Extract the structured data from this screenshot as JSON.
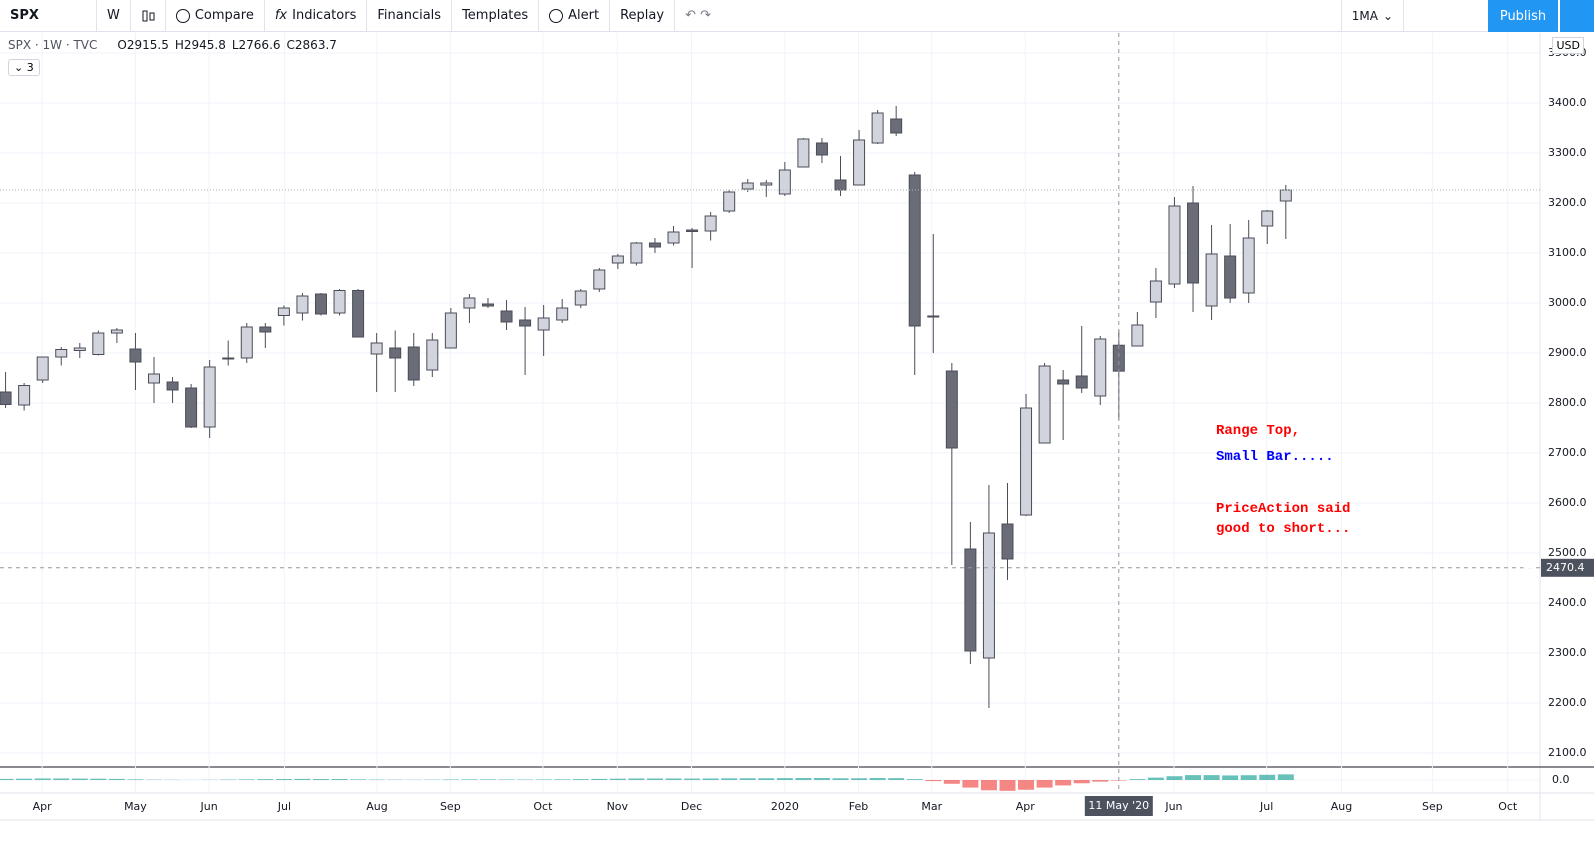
{
  "toolbar": {
    "symbol": "SPX",
    "interval": "W",
    "items": [
      "Compare",
      "Indicators",
      "Financials",
      "Templates",
      "Alert",
      "Replay"
    ],
    "layout": "1MA",
    "publish": "Publish"
  },
  "legend": {
    "symbol_label": "SPX · 1W · TVC",
    "ohlc": [
      "O2915.5",
      "H2945.8",
      "L2766.6",
      "C2863.7"
    ],
    "collapsed_count": "3"
  },
  "currency": "USD",
  "chart_data": {
    "type": "candlestick",
    "categories": [
      null,
      null,
      null,
      null,
      null,
      null,
      null,
      null,
      null,
      null,
      null,
      null,
      null,
      null,
      null,
      null,
      null,
      null,
      null,
      null,
      null,
      null,
      null,
      null,
      null,
      null,
      null,
      null,
      null,
      null,
      null,
      null,
      null,
      null,
      null,
      null,
      null,
      null,
      null,
      null,
      null,
      null,
      null,
      null,
      null,
      null,
      null,
      null,
      null,
      null,
      null,
      null,
      null,
      null,
      null,
      null,
      null,
      null,
      null,
      null,
      "11 May '20",
      null,
      null,
      null,
      null,
      null,
      null,
      null,
      null,
      null
    ],
    "open": [
      2822,
      2796,
      2846,
      2892,
      2905,
      2897,
      2940,
      2908,
      2840,
      2842,
      2830,
      2752,
      2888,
      2890,
      2952,
      2975,
      2980,
      3018,
      2980,
      3025,
      2898,
      2910,
      2912,
      2866,
      2910,
      2990,
      2998,
      2984,
      2966,
      2946,
      2966,
      2996,
      3028,
      3080,
      3080,
      3120,
      3120,
      3146,
      3144,
      3184,
      3228,
      3236,
      3218,
      3272,
      3320,
      3246,
      3236,
      3320,
      3368,
      3256,
      2974,
      2864,
      2508,
      2290,
      2558,
      2576,
      2720,
      2846,
      2854,
      2814,
      2915.5,
      2914,
      3002,
      3038,
      3200,
      2994,
      3094,
      3020,
      3154,
      3204
    ],
    "high": [
      2862,
      2840,
      2893,
      2912,
      2920,
      2945,
      2950,
      2940,
      2892,
      2852,
      2838,
      2886,
      2925,
      2960,
      2960,
      2995,
      3020,
      3020,
      3028,
      3028,
      2940,
      2945,
      2940,
      2940,
      2990,
      3018,
      3010,
      3006,
      2992,
      2996,
      3008,
      3028,
      3070,
      3098,
      3122,
      3130,
      3154,
      3150,
      3182,
      3226,
      3248,
      3246,
      3282,
      3330,
      3330,
      3294,
      3346,
      3386,
      3394,
      3262,
      3138,
      2880,
      2562,
      2636,
      2640,
      2818,
      2880,
      2866,
      2954,
      2934,
      2945.8,
      2982,
      3070,
      3212,
      3234,
      3156,
      3158,
      3166,
      3186,
      3236
    ],
    "low": [
      2790,
      2785,
      2840,
      2875,
      2890,
      2895,
      2920,
      2826,
      2800,
      2800,
      2750,
      2730,
      2875,
      2880,
      2910,
      2955,
      2965,
      2975,
      2975,
      2932,
      2822,
      2822,
      2834,
      2852,
      2910,
      2960,
      2990,
      2946,
      2856,
      2894,
      2960,
      2990,
      3022,
      3068,
      3075,
      3100,
      3115,
      3070,
      3125,
      3180,
      3222,
      3212,
      3214,
      3272,
      3280,
      3214,
      3236,
      3318,
      3334,
      2856,
      2900,
      2476,
      2278,
      2190,
      2446,
      2574,
      2720,
      2726,
      2820,
      2796,
      2766.6,
      2914,
      2970,
      3030,
      2982,
      2966,
      3000,
      3000,
      3118,
      3128
    ],
    "close": [
      2797,
      2835,
      2892,
      2907,
      2910,
      2940,
      2946,
      2882,
      2858,
      2826,
      2752,
      2872,
      2890,
      2952,
      2942,
      2990,
      3014,
      2978,
      3025,
      2932,
      2920,
      2890,
      2846,
      2926,
      2980,
      3010,
      2994,
      2962,
      2954,
      2970,
      2990,
      3024,
      3066,
      3094,
      3120,
      3112,
      3142,
      3143,
      3174,
      3222,
      3240,
      3240,
      3266,
      3328,
      3296,
      3226,
      3326,
      3380,
      3340,
      2954,
      2972,
      2710,
      2304,
      2540,
      2488,
      2790,
      2874,
      2838,
      2830,
      2928,
      2863.7,
      2956,
      3044,
      3194,
      3040,
      3098,
      3010,
      3130,
      3184,
      3226
    ],
    "up_color": "#d1d4dc",
    "down_color": "#6a6d78",
    "border_color": "#4a4d57",
    "xlim": [
      -0.3,
      82.7
    ],
    "xticks": [
      {
        "value": 1.97,
        "label": "Apr"
      },
      {
        "value": 7.0,
        "label": "May"
      },
      {
        "value": 10.97,
        "label": "Jun"
      },
      {
        "value": 15.03,
        "label": "Jul"
      },
      {
        "value": 20.02,
        "label": "Aug"
      },
      {
        "value": 23.97,
        "label": "Sep"
      },
      {
        "value": 28.96,
        "label": "Oct"
      },
      {
        "value": 32.97,
        "label": "Nov"
      },
      {
        "value": 36.97,
        "label": "Dec"
      },
      {
        "value": 42.0,
        "label": "2020"
      },
      {
        "value": 45.97,
        "label": "Feb"
      },
      {
        "value": 49.92,
        "label": "Mar"
      },
      {
        "value": 54.96,
        "label": "Apr"
      },
      {
        "value": 62.97,
        "label": "Jun"
      },
      {
        "value": 67.97,
        "label": "Jul"
      },
      {
        "value": 72.0,
        "label": "Aug"
      },
      {
        "value": 76.9,
        "label": "Sep"
      },
      {
        "value": 80.96,
        "label": "Oct"
      }
    ],
    "ylim": [
      2072,
      3540
    ],
    "yticks": [
      {
        "value": 2100,
        "label": "2100.0"
      },
      {
        "value": 2200,
        "label": "2200.0"
      },
      {
        "value": 2300,
        "label": "2300.0"
      },
      {
        "value": 2400,
        "label": "2400.0"
      },
      {
        "value": 2500,
        "label": "2500.0"
      },
      {
        "value": 2600,
        "label": "2600.0"
      },
      {
        "value": 2700,
        "label": "2700.0"
      },
      {
        "value": 2800,
        "label": "2800.0"
      },
      {
        "value": 2900,
        "label": "2900.0"
      },
      {
        "value": 3000,
        "label": "3000.0"
      },
      {
        "value": 3100,
        "label": "3100.0"
      },
      {
        "value": 3200,
        "label": "3200.0"
      },
      {
        "value": 3300,
        "label": "3300.0"
      },
      {
        "value": 3400,
        "label": "3400.0"
      },
      {
        "value": 3500,
        "label": "3500.0"
      }
    ],
    "grid": true,
    "crosshair_price": 2470.4,
    "annotations": [
      {
        "text": "Range Top,",
        "color": "#ff0000"
      },
      {
        "text": "Small Bar.....",
        "color": "#0000ff"
      },
      {
        "text": "PriceAction said",
        "color": "#ff0000"
      },
      {
        "text": "good to short...",
        "color": "#ff0000"
      }
    ],
    "indicator": {
      "type": "bar",
      "values": [
        10,
        12,
        14,
        14,
        13,
        12,
        10,
        6,
        3,
        2,
        1,
        2,
        4,
        6,
        8,
        9,
        10,
        9,
        9,
        6,
        4,
        3,
        2,
        3,
        5,
        6,
        6,
        5,
        4,
        5,
        6,
        8,
        10,
        12,
        14,
        14,
        14,
        13,
        14,
        15,
        16,
        16,
        17,
        18,
        18,
        16,
        16,
        18,
        17,
        8,
        -10,
        -35,
        -70,
        -95,
        -100,
        -90,
        -70,
        -50,
        -30,
        -15,
        -5,
        8,
        22,
        35,
        45,
        45,
        42,
        44,
        48,
        52
      ],
      "pos_color": "#26a69a",
      "neg_color": "#ef5350",
      "ylim": [
        -120,
        120
      ],
      "yticks": [
        {
          "value": 0,
          "label": "0.0"
        }
      ]
    }
  }
}
